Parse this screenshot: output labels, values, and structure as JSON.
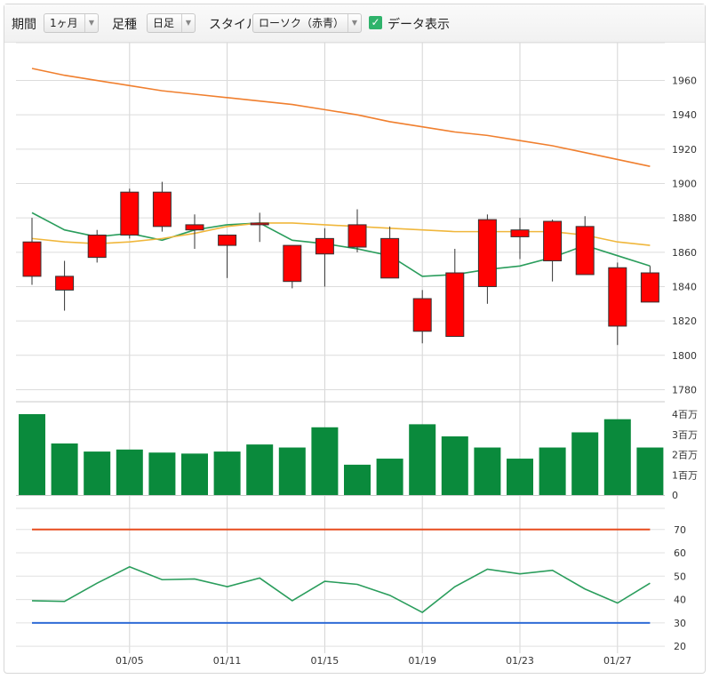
{
  "toolbar": {
    "period_label": "期間",
    "period_value": "1ヶ月",
    "bar_label": "足種",
    "bar_value": "日足",
    "style_label": "スタイル",
    "style_value": "ローソク（赤青）",
    "show_data_label": "データ表示",
    "show_data_checked": true
  },
  "chart_data": [
    {
      "type": "candlestick",
      "x_ticks": [
        "01/05",
        "01/11",
        "01/15",
        "01/19",
        "01/23",
        "01/27"
      ],
      "x_tick_index": [
        3,
        6,
        9,
        12,
        15,
        18
      ],
      "y_ticks": [
        1780,
        1800,
        1820,
        1840,
        1860,
        1880,
        1900,
        1920,
        1940,
        1960
      ],
      "ylim": [
        1773,
        1982
      ],
      "up_color": "#ff0000",
      "down_color": "#0000ff",
      "candles": [
        {
          "o": 1846,
          "h": 1880,
          "l": 1841,
          "c": 1866
        },
        {
          "o": 1838,
          "h": 1855,
          "l": 1826,
          "c": 1846
        },
        {
          "o": 1857,
          "h": 1873,
          "l": 1854,
          "c": 1870
        },
        {
          "o": 1870,
          "h": 1897,
          "l": 1868,
          "c": 1895
        },
        {
          "o": 1875,
          "h": 1901,
          "l": 1872,
          "c": 1895
        },
        {
          "o": 1873,
          "h": 1882,
          "l": 1862,
          "c": 1876
        },
        {
          "o": 1864,
          "h": 1870,
          "l": 1845,
          "c": 1870
        },
        {
          "o": 1876,
          "h": 1883,
          "l": 1866,
          "c": 1877
        },
        {
          "o": 1843,
          "h": 1864,
          "l": 1839,
          "c": 1864
        },
        {
          "o": 1859,
          "h": 1874,
          "l": 1840,
          "c": 1868
        },
        {
          "o": 1863,
          "h": 1885,
          "l": 1860,
          "c": 1876
        },
        {
          "o": 1845,
          "h": 1875,
          "l": 1845,
          "c": 1868
        },
        {
          "o": 1814,
          "h": 1838,
          "l": 1807,
          "c": 1833
        },
        {
          "o": 1811,
          "h": 1862,
          "l": 1811,
          "c": 1848
        },
        {
          "o": 1840,
          "h": 1882,
          "l": 1830,
          "c": 1879
        },
        {
          "o": 1869,
          "h": 1880,
          "l": 1856,
          "c": 1873
        },
        {
          "o": 1855,
          "h": 1879,
          "l": 1843,
          "c": 1878
        },
        {
          "o": 1847,
          "h": 1881,
          "l": 1847,
          "c": 1875
        },
        {
          "o": 1817,
          "h": 1854,
          "l": 1806,
          "c": 1851
        },
        {
          "o": 1831,
          "h": 1852,
          "l": 1831,
          "c": 1848
        }
      ],
      "moving_averages": [
        {
          "color": "#2a9d5c",
          "values": [
            1883,
            1873,
            1869,
            1871,
            1867,
            1873,
            1876,
            1877,
            1867,
            1865,
            1862,
            1858,
            1846,
            1847,
            1850,
            1852,
            1857,
            1864,
            1858,
            1852
          ]
        },
        {
          "color": "#f0b73c",
          "values": [
            1868,
            1866,
            1865,
            1866,
            1868,
            1871,
            1875,
            1877,
            1877,
            1876,
            1875,
            1874,
            1873,
            1872,
            1872,
            1872,
            1872,
            1870,
            1866,
            1864
          ]
        },
        {
          "color": "#f07f2e",
          "values": [
            1967,
            1963,
            1960,
            1957,
            1954,
            1952,
            1950,
            1948,
            1946,
            1943,
            1940,
            1936,
            1933,
            1930,
            1928,
            1925,
            1922,
            1918,
            1914,
            1910
          ]
        }
      ]
    },
    {
      "type": "bar",
      "y_ticks": [
        "0",
        "1百万",
        "2百万",
        "3百万",
        "4百万"
      ],
      "ylim": [
        0,
        4
      ],
      "bar_color": "#0a8a3c",
      "values": [
        4.0,
        2.55,
        2.15,
        2.25,
        2.1,
        2.05,
        2.15,
        2.5,
        2.35,
        3.35,
        1.5,
        1.8,
        3.5,
        2.9,
        2.35,
        1.8,
        2.35,
        3.1,
        3.75,
        2.35
      ]
    },
    {
      "type": "line",
      "y_ticks": [
        20,
        30,
        40,
        50,
        60,
        70
      ],
      "ylim": [
        17,
        76
      ],
      "values": [
        39.5,
        39.2,
        47,
        54,
        48.5,
        48.8,
        45.5,
        49.2,
        39.5,
        47.8,
        46.5,
        41.8,
        34.5,
        45.5,
        53,
        51,
        52.5,
        44.5,
        38.5,
        47
      ],
      "line_color": "#2a9d5c",
      "upper_level": 70,
      "lower_level": 30,
      "upper_color": "#e74c1e",
      "lower_color": "#2f6cd6"
    }
  ]
}
